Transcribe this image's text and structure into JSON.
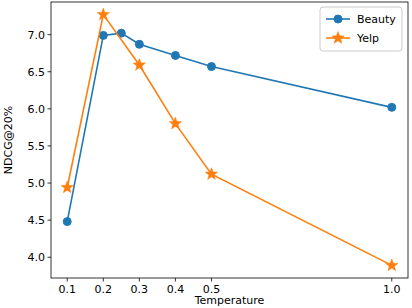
{
  "chart_data": {
    "type": "line",
    "x_label": "Temperature",
    "y_label": "NDCG@20%",
    "series": [
      {
        "name": "Beauty",
        "color": "#1f77b4",
        "marker": "circle",
        "line_style": "solid",
        "x": [
          0.1,
          0.2,
          0.25,
          0.3,
          0.4,
          0.5,
          1.0
        ],
        "values": [
          4.48,
          6.99,
          7.02,
          6.87,
          6.72,
          6.57,
          6.02
        ]
      },
      {
        "name": "Yelp",
        "color": "#ff7f0e",
        "marker": "star",
        "line_style": "solid",
        "x": [
          0.1,
          0.2,
          0.3,
          0.4,
          0.5,
          1.0
        ],
        "values": [
          4.94,
          7.27,
          6.59,
          5.8,
          5.12,
          3.89
        ]
      }
    ],
    "xlim": [
      0.055,
      1.045
    ],
    "xticks": [
      0.1,
      0.2,
      0.3,
      0.4,
      0.5,
      {
        "value": 1,
        "label": "1.0"
      }
    ],
    "ylim": [
      3.72,
      7.44
    ],
    "yticks": [
      {
        "value": 4,
        "label": "4.0"
      },
      4.5,
      {
        "value": 5,
        "label": "5.0"
      },
      5.5,
      {
        "value": 6,
        "label": "6.0"
      },
      6.5,
      {
        "value": 7,
        "label": "7.0"
      }
    ],
    "grid": false,
    "legend": "upper right"
  }
}
